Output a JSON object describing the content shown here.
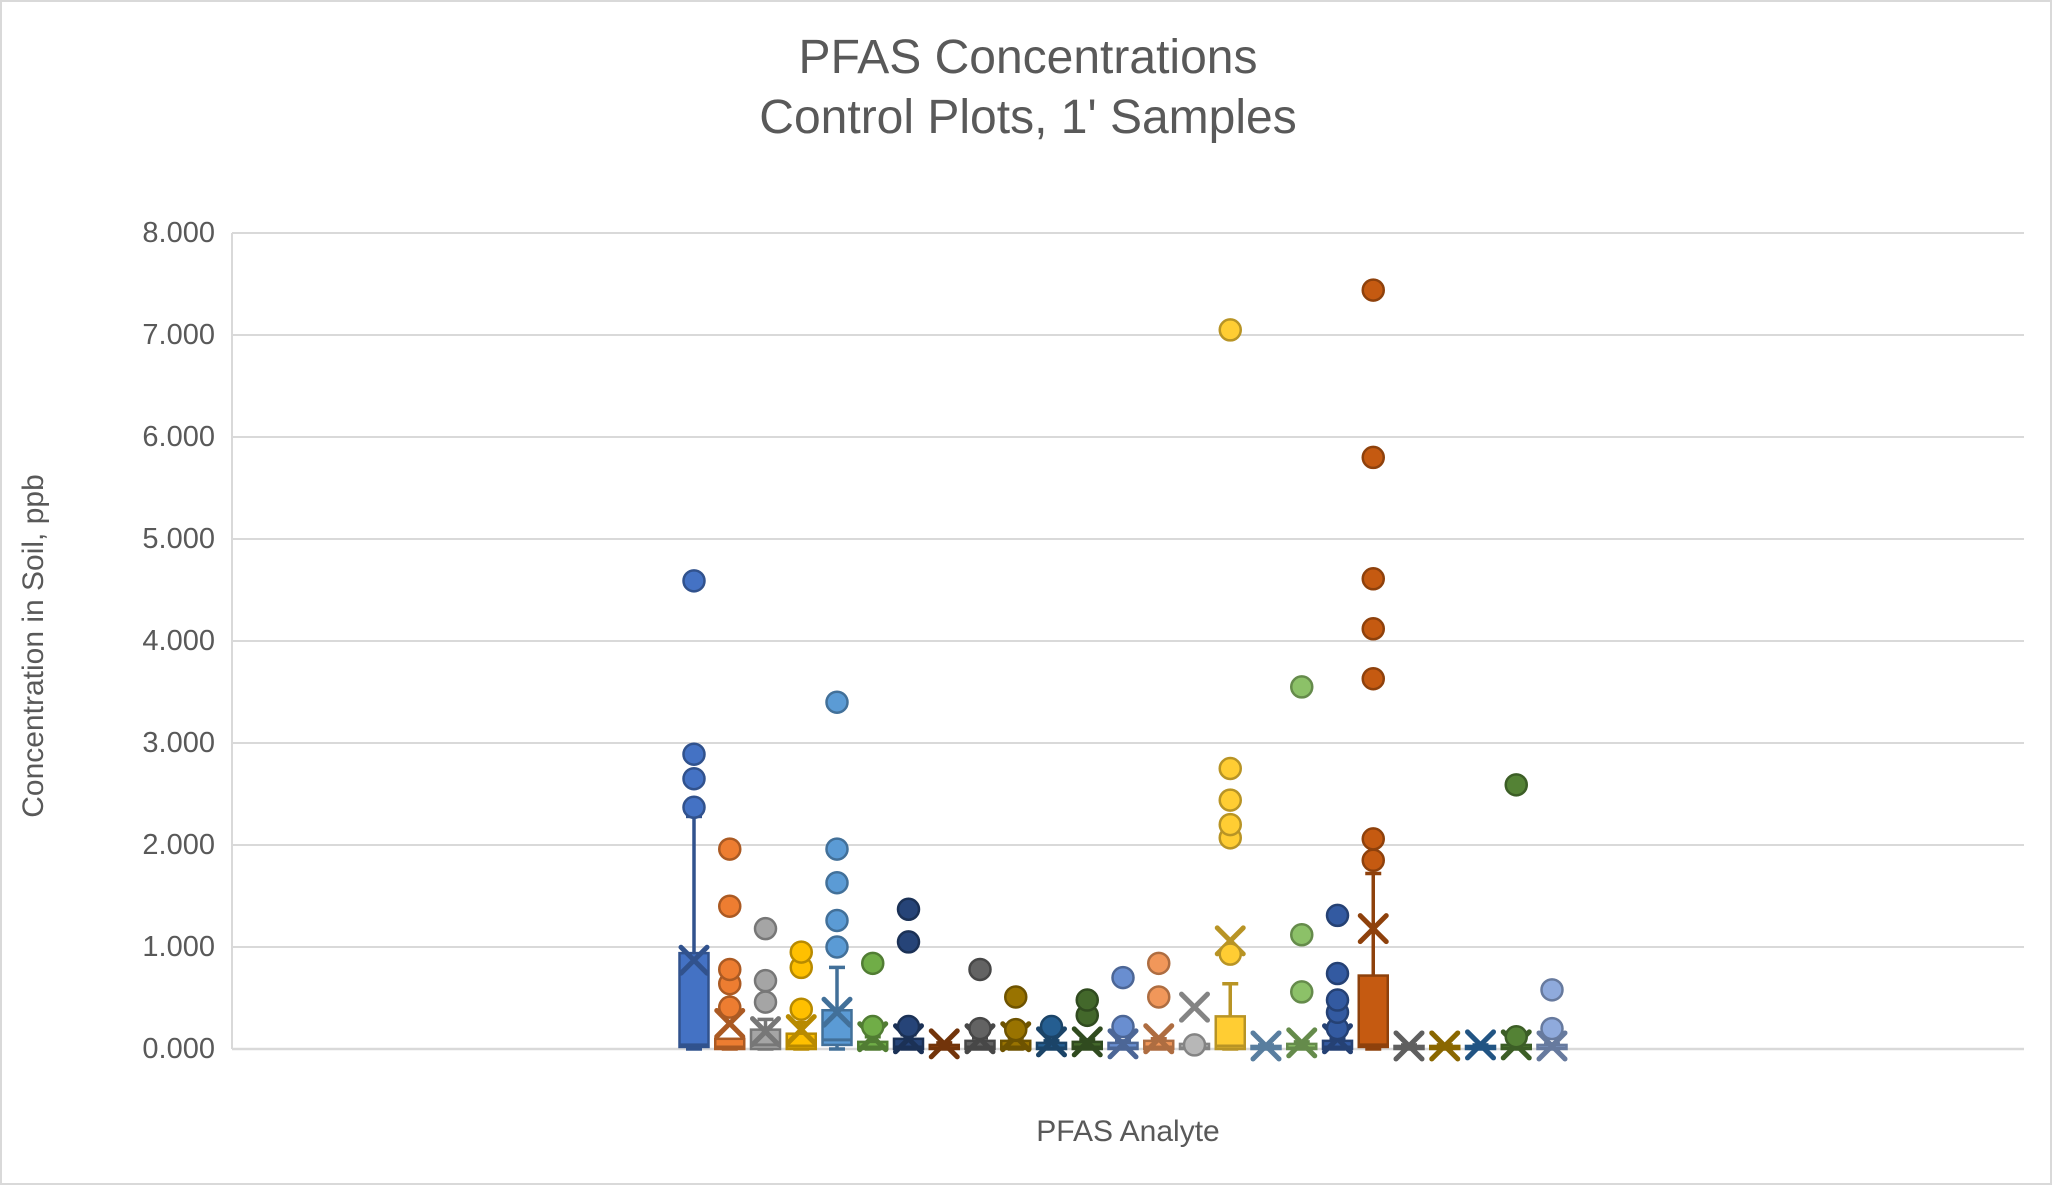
{
  "colors": {
    "text": "#595959",
    "grid": "#d9d9d9",
    "axis": "#d9d9d9",
    "frame": "#d9d9d9",
    "background": "#ffffff"
  },
  "chart_data": {
    "type": "box",
    "variant": "box-and-whisker-with-outliers-and-mean-markers",
    "title": "PFAS Concentrations",
    "subtitle": "Control Plots, 1' Samples",
    "xlabel": "PFAS Analyte",
    "ylabel": "Concentration in Soil, ppb",
    "ylim": [
      0,
      8
    ],
    "y_tick_labels": [
      "0.000",
      "1.000",
      "2.000",
      "3.000",
      "4.000",
      "5.000",
      "6.000",
      "7.000",
      "8.000"
    ],
    "x_tick_labels": [],
    "grid": true,
    "legend": "none",
    "categories": [
      "PFAS Analyte"
    ],
    "series": [
      {
        "color": "#4472C4",
        "q1": 0.02,
        "median": 0.04,
        "q3": 0.94,
        "whisker_low": 0,
        "whisker_high": 2.28,
        "mean": 0.87,
        "outliers": [
          2.37,
          2.65,
          2.89,
          4.59
        ]
      },
      {
        "color": "#ED7D31",
        "q1": 0,
        "median": 0.02,
        "q3": 0.1,
        "whisker_low": 0,
        "whisker_high": 0.1,
        "mean": 0.25,
        "outliers": [
          0.41,
          0.64,
          0.78,
          1.4,
          1.96
        ]
      },
      {
        "color": "#A5A5A5",
        "q1": 0,
        "median": 0.04,
        "q3": 0.19,
        "whisker_low": 0,
        "whisker_high": 0.29,
        "mean": 0.17,
        "outliers": [
          0.46,
          0.67,
          1.18
        ]
      },
      {
        "color": "#FFC000",
        "q1": 0,
        "median": 0.03,
        "q3": 0.15,
        "whisker_low": 0,
        "whisker_high": 0.26,
        "mean": 0.19,
        "outliers": [
          0.39,
          0.8,
          0.95
        ]
      },
      {
        "color": "#5B9BD5",
        "q1": 0.04,
        "median": 0.09,
        "q3": 0.38,
        "whisker_low": 0,
        "whisker_high": 0.8,
        "mean": 0.36,
        "outliers": [
          1.0,
          1.26,
          1.63,
          1.96,
          3.4
        ]
      },
      {
        "color": "#70AD47",
        "q1": 0,
        "median": 0.02,
        "q3": 0.07,
        "whisker_low": 0,
        "whisker_high": 0.12,
        "mean": 0.12,
        "outliers": [
          0.22,
          0.84
        ]
      },
      {
        "color": "#264478",
        "q1": 0,
        "median": 0.02,
        "q3": 0.1,
        "whisker_low": 0,
        "whisker_high": 0.14,
        "mean": 0.1,
        "outliers": [
          0.22,
          1.05,
          1.37
        ]
      },
      {
        "color": "#9E480E",
        "q1": 0,
        "median": 0.01,
        "q3": 0.04,
        "whisker_low": 0,
        "whisker_high": 0.06,
        "mean": 0.05,
        "outliers": []
      },
      {
        "color": "#636363",
        "q1": 0,
        "median": 0.02,
        "q3": 0.08,
        "whisker_low": 0,
        "whisker_high": 0.11,
        "mean": 0.1,
        "outliers": [
          0.2,
          0.78
        ]
      },
      {
        "color": "#997300",
        "q1": 0,
        "median": 0.02,
        "q3": 0.08,
        "whisker_low": 0,
        "whisker_high": 0.11,
        "mean": 0.12,
        "outliers": [
          0.19,
          0.51
        ]
      },
      {
        "color": "#255E91",
        "q1": 0,
        "median": 0.01,
        "q3": 0.06,
        "whisker_low": 0,
        "whisker_high": 0.08,
        "mean": 0.07,
        "outliers": [
          0.22
        ]
      },
      {
        "color": "#43682B",
        "q1": 0,
        "median": 0.02,
        "q3": 0.07,
        "whisker_low": 0,
        "whisker_high": 0.09,
        "mean": 0.07,
        "outliers": [
          0.33,
          0.48
        ]
      },
      {
        "color": "#698ED0",
        "q1": 0,
        "median": 0.01,
        "q3": 0.06,
        "whisker_low": 0,
        "whisker_high": 0.08,
        "mean": 0.05,
        "outliers": [
          0.22,
          0.7
        ]
      },
      {
        "color": "#F1975A",
        "q1": 0,
        "median": 0.02,
        "q3": 0.08,
        "whisker_low": 0,
        "whisker_high": 0.1,
        "mean": 0.1,
        "outliers": [
          0.51,
          0.84
        ]
      },
      {
        "color": "#B7B7B7",
        "q1": 0,
        "median": 0.01,
        "q3": 0.05,
        "whisker_low": 0,
        "whisker_high": 0.06,
        "mean": 0.41,
        "outliers": [
          0.04
        ]
      },
      {
        "color": "#FFCD33",
        "q1": 0,
        "median": 0.03,
        "q3": 0.32,
        "whisker_low": 0,
        "whisker_high": 0.64,
        "mean": 1.06,
        "outliers": [
          0.93,
          2.07,
          2.2,
          2.44,
          2.75,
          7.05
        ]
      },
      {
        "color": "#7CAFDD",
        "q1": 0,
        "median": 0.01,
        "q3": 0.03,
        "whisker_low": 0,
        "whisker_high": 0.04,
        "mean": 0.03,
        "outliers": []
      },
      {
        "color": "#8CC168",
        "q1": 0,
        "median": 0.01,
        "q3": 0.05,
        "whisker_low": 0,
        "whisker_high": 0.07,
        "mean": 0.06,
        "outliers": [
          0.56,
          1.12,
          3.55
        ]
      },
      {
        "color": "#335AA1",
        "q1": 0,
        "median": 0.02,
        "q3": 0.08,
        "whisker_low": 0,
        "whisker_high": 0.1,
        "mean": 0.1,
        "outliers": [
          0.2,
          0.36,
          0.48,
          0.74,
          1.31
        ]
      },
      {
        "color": "#C55A11",
        "q1": 0.02,
        "median": 0.04,
        "q3": 0.72,
        "whisker_low": 0,
        "whisker_high": 1.72,
        "mean": 1.18,
        "outliers": [
          1.85,
          2.06,
          3.63,
          4.12,
          4.61,
          5.8,
          7.44
        ]
      },
      {
        "color": "#848484",
        "q1": 0,
        "median": 0.01,
        "q3": 0.03,
        "whisker_low": 0,
        "whisker_high": 0.04,
        "mean": 0.03,
        "outliers": []
      },
      {
        "color": "#BF8F00",
        "q1": 0,
        "median": 0.01,
        "q3": 0.03,
        "whisker_low": 0,
        "whisker_high": 0.04,
        "mean": 0.03,
        "outliers": []
      },
      {
        "color": "#2E75B6",
        "q1": 0,
        "median": 0.01,
        "q3": 0.03,
        "whisker_low": 0,
        "whisker_high": 0.04,
        "mean": 0.04,
        "outliers": []
      },
      {
        "color": "#548235",
        "q1": 0,
        "median": 0.01,
        "q3": 0.04,
        "whisker_low": 0,
        "whisker_high": 0.05,
        "mean": 0.04,
        "outliers": [
          0.12,
          2.59
        ]
      },
      {
        "color": "#8FAADC",
        "q1": 0,
        "median": 0.01,
        "q3": 0.04,
        "whisker_low": 0,
        "whisker_high": 0.05,
        "mean": 0.03,
        "outliers": [
          0.2,
          0.58
        ]
      }
    ]
  }
}
